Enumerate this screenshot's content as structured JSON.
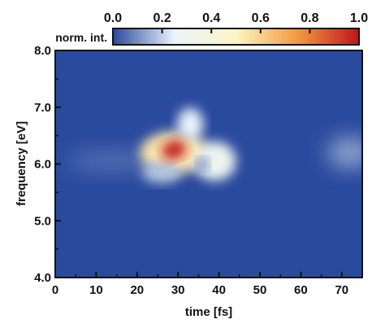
{
  "chart_data": {
    "type": "heatmap",
    "xlabel": "time [fs]",
    "ylabel": "frequency [eV]",
    "xlim": [
      0,
      75
    ],
    "ylim": [
      4.0,
      8.0
    ],
    "x_ticks": [
      "0",
      "10",
      "20",
      "30",
      "40",
      "50",
      "60",
      "70"
    ],
    "y_ticks": [
      "4.0",
      "5.0",
      "6.0",
      "7.0",
      "8.0"
    ],
    "colorbar": {
      "label": "norm. int.",
      "range": [
        0.0,
        1.0
      ],
      "ticks": [
        "0.0",
        "0.2",
        "0.4",
        "0.6",
        "0.8",
        "1.0"
      ],
      "colormap": [
        "#2a4a9e",
        "#e9f4fb",
        "#fcf5c4",
        "#f39a3f",
        "#c0141c"
      ]
    },
    "features": [
      {
        "name": "peak",
        "time": 29,
        "frequency": 6.25,
        "value": 1.0
      },
      {
        "name": "main-lobe",
        "time": 29,
        "frequency": 6.2,
        "value": 0.55
      },
      {
        "name": "upper-tail",
        "time": 33,
        "frequency": 6.7,
        "value": 0.25
      },
      {
        "name": "right-lobe",
        "time": 39,
        "frequency": 6.05,
        "value": 0.3
      },
      {
        "name": "dip",
        "time": 36,
        "frequency": 6.0,
        "value": 0.05
      },
      {
        "name": "lower-lobe",
        "time": 26,
        "frequency": 5.85,
        "value": 0.18
      },
      {
        "name": "left-tail",
        "time": 14,
        "frequency": 6.05,
        "value": 0.05
      },
      {
        "name": "weak-feature",
        "time": 72,
        "frequency": 6.2,
        "value": 0.12
      }
    ],
    "grid": false
  }
}
